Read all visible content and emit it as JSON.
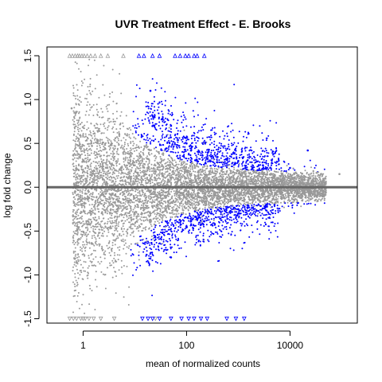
{
  "chart_data": {
    "type": "scatter",
    "title": "UVR Treatment Effect - E. Brooks",
    "xlabel": "mean of normalized counts",
    "ylabel": "log fold change",
    "x_scale": "log10",
    "xlim": [
      0.2,
      200000
    ],
    "ylim": [
      -1.55,
      1.6
    ],
    "x_ticks": [
      {
        "value": 1,
        "label": "1"
      },
      {
        "value": 100,
        "label": "100"
      },
      {
        "value": 10000,
        "label": "10000"
      }
    ],
    "y_ticks": [
      {
        "value": -1.5,
        "label": "-1.5"
      },
      {
        "value": -1.0,
        "label": "-1.0"
      },
      {
        "value": -0.5,
        "label": "-0.5"
      },
      {
        "value": 0.0,
        "label": "0.0"
      },
      {
        "value": 0.5,
        "label": "0.5"
      },
      {
        "value": 1.0,
        "label": "1.0"
      },
      {
        "value": 1.5,
        "label": "1.5"
      }
    ],
    "reference_line": {
      "y": 0,
      "color": "#666666"
    },
    "grid": false,
    "legend": "none",
    "colors": {
      "not_significant": "#999999",
      "significant": "#0000ff"
    },
    "series": [
      {
        "values": [
          {
            "x": 0.6,
            "y": 0.9
          },
          {
            "x": 0.8,
            "y": -0.6
          },
          {
            "x": 1.0,
            "y": 0.3
          },
          {
            "x": 2.0,
            "y": -0.2
          },
          {
            "x": 5.0,
            "y": 0.6
          },
          {
            "x": 10,
            "y": 0.25
          },
          {
            "x": 20,
            "y": -0.3
          },
          {
            "x": 50,
            "y": 0.1
          },
          {
            "x": 100,
            "y": -0.08
          },
          {
            "x": 500,
            "y": 0.05
          },
          {
            "x": 3000,
            "y": -0.04
          },
          {
            "x": 20000,
            "y": 0.02
          },
          {
            "x": 90000,
            "y": 0.15
          }
        ]
      },
      {
        "values": [
          {
            "x": 20,
            "y": 1.1
          },
          {
            "x": 50,
            "y": 0.7
          },
          {
            "x": 100,
            "y": 0.5
          },
          {
            "x": 300,
            "y": 0.35
          },
          {
            "x": 1000,
            "y": 0.3
          },
          {
            "x": 3000,
            "y": 0.25
          },
          {
            "x": 10000,
            "y": 0.22
          },
          {
            "x": 50,
            "y": -0.8
          },
          {
            "x": 100,
            "y": -0.45
          },
          {
            "x": 300,
            "y": -0.3
          },
          {
            "x": 1000,
            "y": -0.25
          },
          {
            "x": 5000,
            "y": -0.2
          },
          {
            "x": 22000,
            "y": 0.42
          }
        ]
      }
    ],
    "clipped_markers": {
      "shape": "triangle",
      "top": {
        "y": 1.5,
        "not_significant_x": [
          0.55,
          0.62,
          0.7,
          0.78,
          0.85,
          0.95,
          1.05,
          1.2,
          1.4,
          1.7,
          2.2,
          3,
          6
        ],
        "significant_x": [
          12,
          15,
          22,
          30,
          60,
          75,
          95,
          110,
          140,
          160,
          220
        ]
      },
      "bottom": {
        "y": -1.5,
        "not_significant_x": [
          0.55,
          0.65,
          0.75,
          0.9,
          1.0,
          1.1,
          1.3,
          1.6,
          2.2,
          4,
          25
        ],
        "significant_x": [
          14,
          18,
          22,
          30,
          50,
          80,
          110,
          140,
          190,
          250,
          600,
          900,
          1300
        ]
      }
    }
  }
}
